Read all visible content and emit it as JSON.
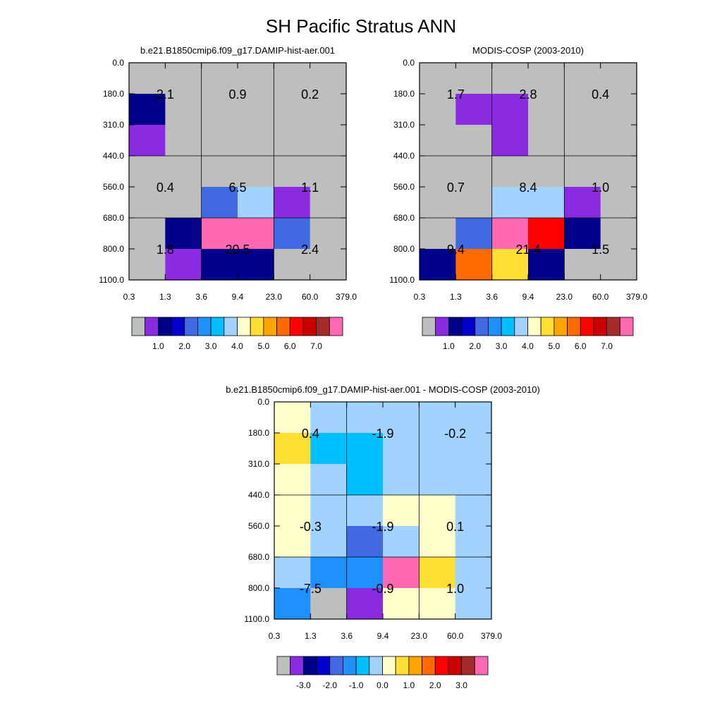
{
  "figure": {
    "title": "SH Pacific Stratus ANN"
  },
  "chart_data": [
    {
      "type": "heatmap",
      "title": "b.e21.B1850cmip6.f09_g17.DAMIP-hist-aer.001",
      "x_ticks": [
        "0.3",
        "1.3",
        "3.6",
        "9.4",
        "23.0",
        "60.0",
        "379.0"
      ],
      "y_ticks": [
        "0.0",
        "180.0",
        "310.0",
        "440.0",
        "560.0",
        "680.0",
        "800.0",
        "1100.0"
      ],
      "fine_colors": [
        [
          "#bebebe",
          "#bebebe",
          "#bebebe",
          "#bebebe",
          "#bebebe",
          "#bebebe"
        ],
        [
          "#00008b",
          "#bebebe",
          "#bebebe",
          "#bebebe",
          "#bebebe",
          "#bebebe"
        ],
        [
          "#8a2be2",
          "#bebebe",
          "#bebebe",
          "#bebebe",
          "#bebebe",
          "#bebebe"
        ],
        [
          "#bebebe",
          "#bebebe",
          "#bebebe",
          "#bebebe",
          "#bebebe",
          "#bebebe"
        ],
        [
          "#bebebe",
          "#bebebe",
          "#4169e1",
          "#a2d2ff",
          "#8a2be2",
          "#bebebe"
        ],
        [
          "#bebebe",
          "#00008b",
          "#ff69b4",
          "#ff69b4",
          "#4169e1",
          "#bebebe"
        ],
        [
          "#bebebe",
          "#8a2be2",
          "#00008b",
          "#00008b",
          "#bebebe",
          "#bebebe"
        ]
      ],
      "cell_values": [
        [
          "2.1",
          "0.9",
          "0.2"
        ],
        [
          "0.4",
          "6.5",
          "1.1"
        ],
        [
          "1.8",
          "20.5",
          "2.4"
        ]
      ],
      "colorbar": {
        "colors": [
          "#bebebe",
          "#8a2be2",
          "#00008b",
          "#0000cd",
          "#4169e1",
          "#1e90ff",
          "#00bfff",
          "#a2d2ff",
          "#ffffcc",
          "#ffdf33",
          "#ffa500",
          "#ff6a00",
          "#ff0000",
          "#cd0000",
          "#a52a2a",
          "#ff69b4"
        ],
        "labels": [
          "1.0",
          "2.0",
          "3.0",
          "4.0",
          "5.0",
          "6.0",
          "7.0"
        ],
        "label_after_box": [
          2,
          4,
          6,
          8,
          10,
          12,
          14
        ]
      }
    },
    {
      "type": "heatmap",
      "title": "MODIS-COSP (2003-2010)",
      "x_ticks": [
        "0.3",
        "1.3",
        "3.6",
        "9.4",
        "23.0",
        "60.0",
        "379.0"
      ],
      "y_ticks": [
        "0.0",
        "180.0",
        "310.0",
        "440.0",
        "560.0",
        "680.0",
        "800.0",
        "1100.0"
      ],
      "fine_colors": [
        [
          "#bebebe",
          "#bebebe",
          "#bebebe",
          "#bebebe",
          "#bebebe",
          "#bebebe"
        ],
        [
          "#bebebe",
          "#8a2be2",
          "#8a2be2",
          "#bebebe",
          "#bebebe",
          "#bebebe"
        ],
        [
          "#bebebe",
          "#bebebe",
          "#8a2be2",
          "#bebebe",
          "#bebebe",
          "#bebebe"
        ],
        [
          "#bebebe",
          "#bebebe",
          "#bebebe",
          "#bebebe",
          "#bebebe",
          "#bebebe"
        ],
        [
          "#bebebe",
          "#bebebe",
          "#a2d2ff",
          "#a2d2ff",
          "#8a2be2",
          "#bebebe"
        ],
        [
          "#bebebe",
          "#4169e1",
          "#ff69b4",
          "#ff0000",
          "#00008b",
          "#bebebe"
        ],
        [
          "#00008b",
          "#ff6a00",
          "#ffdf33",
          "#00008b",
          "#bebebe",
          "#bebebe"
        ]
      ],
      "cell_values": [
        [
          "1.7",
          "2.8",
          "0.4"
        ],
        [
          "0.7",
          "8.4",
          "1.0"
        ],
        [
          "9.4",
          "21.4",
          "1.5"
        ]
      ],
      "colorbar": {
        "colors": [
          "#bebebe",
          "#8a2be2",
          "#00008b",
          "#0000cd",
          "#4169e1",
          "#1e90ff",
          "#00bfff",
          "#a2d2ff",
          "#ffffcc",
          "#ffdf33",
          "#ffa500",
          "#ff6a00",
          "#ff0000",
          "#cd0000",
          "#a52a2a",
          "#ff69b4"
        ],
        "labels": [
          "1.0",
          "2.0",
          "3.0",
          "4.0",
          "5.0",
          "6.0",
          "7.0"
        ],
        "label_after_box": [
          2,
          4,
          6,
          8,
          10,
          12,
          14
        ]
      }
    },
    {
      "type": "heatmap",
      "title": "b.e21.B1850cmip6.f09_g17.DAMIP-hist-aer.001 - MODIS-COSP (2003-2010)",
      "x_ticks": [
        "0.3",
        "1.3",
        "3.6",
        "9.4",
        "23.0",
        "60.0",
        "379.0"
      ],
      "y_ticks": [
        "0.0",
        "180.0",
        "310.0",
        "440.0",
        "560.0",
        "680.0",
        "800.0",
        "1100.0"
      ],
      "fine_colors": [
        [
          "#ffffcc",
          "#a2d2ff",
          "#a2d2ff",
          "#a2d2ff",
          "#a2d2ff",
          "#a2d2ff"
        ],
        [
          "#ffdf33",
          "#00bfff",
          "#00bfff",
          "#a2d2ff",
          "#a2d2ff",
          "#a2d2ff"
        ],
        [
          "#ffffcc",
          "#a2d2ff",
          "#00bfff",
          "#a2d2ff",
          "#a2d2ff",
          "#a2d2ff"
        ],
        [
          "#ffffcc",
          "#a2d2ff",
          "#a2d2ff",
          "#ffffcc",
          "#ffffcc",
          "#a2d2ff"
        ],
        [
          "#ffffcc",
          "#a2d2ff",
          "#4169e1",
          "#a2d2ff",
          "#ffffcc",
          "#a2d2ff"
        ],
        [
          "#a2d2ff",
          "#1e90ff",
          "#1e90ff",
          "#ff69b4",
          "#ffdf33",
          "#a2d2ff"
        ],
        [
          "#1e90ff",
          "#bebebe",
          "#8a2be2",
          "#ffffcc",
          "#ffffcc",
          "#a2d2ff"
        ]
      ],
      "cell_values": [
        [
          "0.4",
          "-1.9",
          "-0.2"
        ],
        [
          "-0.3",
          "-1.9",
          "0.1"
        ],
        [
          "-7.5",
          "-0.9",
          "1.0"
        ]
      ],
      "colorbar": {
        "colors": [
          "#bebebe",
          "#8a2be2",
          "#00008b",
          "#0000cd",
          "#4169e1",
          "#1e90ff",
          "#00bfff",
          "#a2d2ff",
          "#ffffcc",
          "#ffdf33",
          "#ffa500",
          "#ff6a00",
          "#ff0000",
          "#cd0000",
          "#a52a2a",
          "#ff69b4"
        ],
        "labels": [
          "-3.0",
          "-2.0",
          "-1.0",
          "0.0",
          "1.0",
          "2.0",
          "3.0"
        ],
        "label_after_box": [
          2,
          4,
          6,
          8,
          10,
          12,
          14
        ]
      }
    }
  ]
}
